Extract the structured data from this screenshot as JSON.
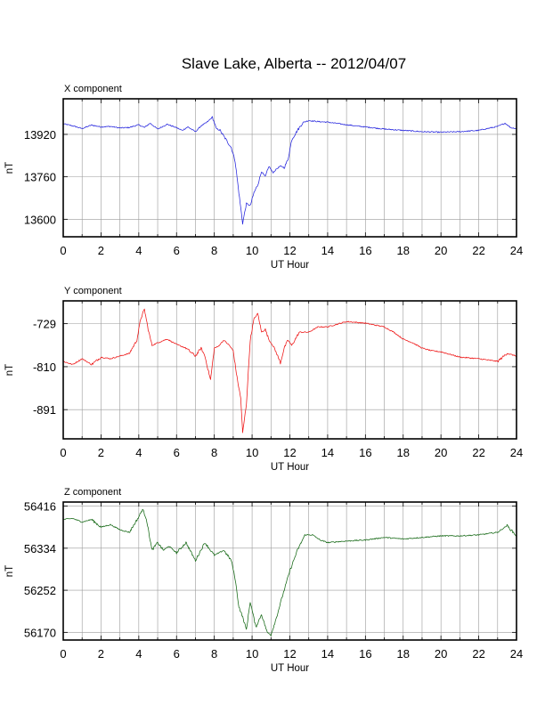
{
  "title": "Slave Lake, Alberta -- 2012/04/07",
  "chart_data": [
    {
      "type": "line",
      "label": "X component",
      "xlabel": "UT Hour",
      "ylabel": "nT",
      "xlim": [
        0,
        24
      ],
      "ylim": [
        13534,
        14054
      ],
      "xticks": [
        0,
        2,
        4,
        6,
        8,
        10,
        12,
        14,
        16,
        18,
        20,
        22,
        24
      ],
      "yticks": [
        13600,
        13760,
        13920
      ],
      "grid": true,
      "color": "#2222dd",
      "x": [
        0,
        0.5,
        1,
        1.5,
        2,
        2.5,
        3,
        3.5,
        4,
        4.3,
        4.6,
        5,
        5.5,
        6,
        6.3,
        6.6,
        7,
        7.3,
        7.6,
        7.9,
        8.1,
        8.3,
        8.6,
        8.9,
        9.1,
        9.3,
        9.5,
        9.7,
        9.9,
        10.1,
        10.3,
        10.5,
        10.7,
        10.9,
        11.1,
        11.3,
        11.5,
        11.7,
        11.9,
        12.1,
        12.4,
        12.7,
        13,
        13.5,
        14,
        15,
        16,
        17,
        18,
        19,
        20,
        21,
        22,
        23,
        23.4,
        23.7,
        24
      ],
      "values": [
        13960,
        13952,
        13942,
        13955,
        13948,
        13950,
        13944,
        13946,
        13956,
        13946,
        13962,
        13940,
        13958,
        13945,
        13935,
        13948,
        13930,
        13952,
        13965,
        13985,
        13942,
        13935,
        13902,
        13870,
        13820,
        13700,
        13585,
        13660,
        13650,
        13700,
        13730,
        13780,
        13760,
        13800,
        13775,
        13790,
        13800,
        13795,
        13825,
        13900,
        13935,
        13965,
        13972,
        13968,
        13966,
        13956,
        13948,
        13940,
        13935,
        13930,
        13928,
        13930,
        13935,
        13950,
        13962,
        13945,
        13942
      ]
    },
    {
      "type": "line",
      "label": "Y component",
      "xlabel": "UT Hour",
      "ylabel": "nT",
      "xlim": [
        0,
        24
      ],
      "ylim": [
        -946,
        -686
      ],
      "xticks": [
        0,
        2,
        4,
        6,
        8,
        10,
        12,
        14,
        16,
        18,
        20,
        22,
        24
      ],
      "yticks": [
        -891,
        -810,
        -729
      ],
      "grid": true,
      "color": "#ee1111",
      "x": [
        0,
        0.5,
        1,
        1.5,
        2,
        2.5,
        3,
        3.5,
        3.9,
        4.1,
        4.3,
        4.5,
        4.7,
        5,
        5.5,
        6,
        6.5,
        7,
        7.3,
        7.5,
        7.7,
        7.8,
        8,
        8.2,
        8.5,
        8.8,
        9,
        9.2,
        9.4,
        9.5,
        9.7,
        9.9,
        10.1,
        10.3,
        10.5,
        10.7,
        10.9,
        11.1,
        11.3,
        11.5,
        11.7,
        11.9,
        12.1,
        12.5,
        13,
        13.5,
        14,
        15,
        16,
        17,
        17.5,
        18,
        18.5,
        19,
        19.5,
        20,
        21,
        22,
        23,
        23.5,
        24
      ],
      "values": [
        -800,
        -806,
        -795,
        -806,
        -792,
        -795,
        -790,
        -785,
        -760,
        -720,
        -702,
        -740,
        -770,
        -765,
        -758,
        -768,
        -775,
        -790,
        -775,
        -790,
        -820,
        -835,
        -775,
        -772,
        -760,
        -770,
        -780,
        -830,
        -870,
        -935,
        -880,
        -760,
        -720,
        -710,
        -745,
        -740,
        -760,
        -770,
        -785,
        -803,
        -775,
        -760,
        -770,
        -745,
        -745,
        -735,
        -735,
        -725,
        -728,
        -735,
        -745,
        -758,
        -765,
        -775,
        -780,
        -782,
        -792,
        -795,
        -800,
        -785,
        -790
      ]
    },
    {
      "type": "line",
      "label": "Z component",
      "xlabel": "UT Hour",
      "ylabel": "nT",
      "xlim": [
        0,
        24
      ],
      "ylim": [
        56155,
        56424
      ],
      "xticks": [
        0,
        2,
        4,
        6,
        8,
        10,
        12,
        14,
        16,
        18,
        20,
        22,
        24
      ],
      "yticks": [
        56170,
        56252,
        56334,
        56416
      ],
      "grid": true,
      "color": "#116611",
      "x": [
        0,
        0.5,
        1,
        1.5,
        2,
        2.5,
        3,
        3.5,
        4,
        4.2,
        4.4,
        4.7,
        5,
        5.3,
        5.6,
        6,
        6.5,
        7,
        7.5,
        8,
        8.5,
        8.9,
        9.1,
        9.3,
        9.5,
        9.7,
        9.9,
        10.2,
        10.5,
        10.8,
        11,
        11.3,
        11.6,
        12,
        12.4,
        12.8,
        13.2,
        13.6,
        14,
        15,
        16,
        17,
        18,
        19,
        20,
        21,
        22,
        23,
        23.5,
        24
      ],
      "values": [
        56390,
        56392,
        56385,
        56390,
        56375,
        56380,
        56370,
        56365,
        56395,
        56410,
        56392,
        56330,
        56345,
        56330,
        56338,
        56325,
        56345,
        56310,
        56345,
        56320,
        56330,
        56310,
        56275,
        56220,
        56200,
        56175,
        56230,
        56180,
        56205,
        56170,
        56165,
        56200,
        56240,
        56290,
        56330,
        56360,
        56360,
        56350,
        56345,
        56348,
        56350,
        56355,
        56352,
        56355,
        56358,
        56358,
        56360,
        56365,
        56378,
        56358
      ]
    }
  ]
}
